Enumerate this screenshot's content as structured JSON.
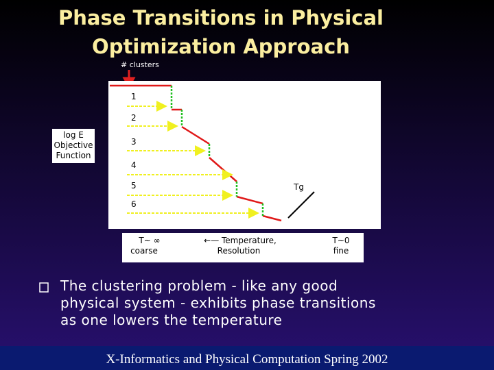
{
  "slide": {
    "title": [
      "Phase Transitions in Physical",
      "Optimization Approach"
    ],
    "diagram": {
      "y_marker": "# clusters",
      "y_label": [
        "log E",
        "Objective",
        "Function"
      ],
      "cluster_labels": [
        "1",
        "2",
        "3",
        "4",
        "5",
        "6"
      ],
      "tg_label": "Tg",
      "x_axis": {
        "left": [
          "T~ ∞",
          "coarse"
        ],
        "middle": [
          "←— Temperature,",
          "Resolution"
        ],
        "right": [
          "T~0",
          "fine"
        ]
      }
    },
    "bullet": [
      "The clustering problem - like any good",
      "physical system - exhibits phase transitions",
      "as one lowers the temperature"
    ],
    "footer": "X-Informatics and Physical Computation Spring 2002"
  }
}
